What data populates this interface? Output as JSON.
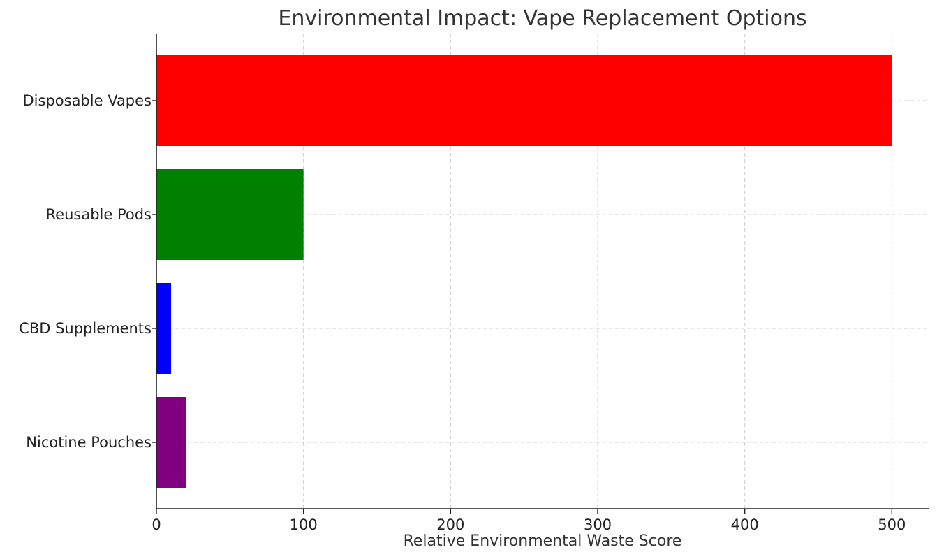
{
  "chart_data": {
    "type": "bar",
    "orientation": "horizontal",
    "title": "Environmental Impact: Vape Replacement Options",
    "xlabel": "Relative Environmental Waste Score",
    "ylabel": "",
    "categories": [
      "Disposable Vapes",
      "Reusable Pods",
      "CBD Supplements",
      "Nicotine Pouches"
    ],
    "values": [
      500,
      100,
      10,
      20
    ],
    "colors": [
      "#ff0000",
      "#008000",
      "#0000ff",
      "#800080"
    ],
    "xlim": [
      0,
      525
    ],
    "xticks": [
      0,
      100,
      200,
      300,
      400,
      500
    ],
    "grid": true
  }
}
